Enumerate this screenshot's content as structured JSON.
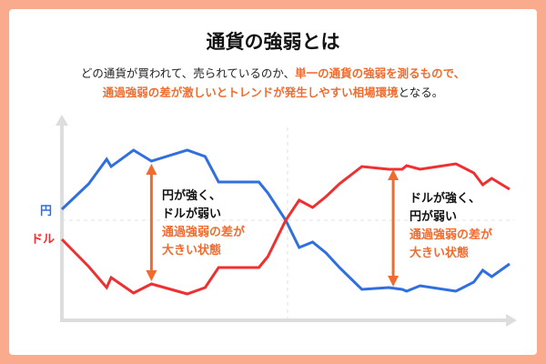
{
  "title": "通貨の強弱とは",
  "description": {
    "line1_plain": "どの通貨が買われて、売られているのか、",
    "line1_highlight": "単一の通貨の強弱を測るもので、",
    "line2_highlight": "通過強弱の差が激しいとトレンドが発生しやすい相場環境",
    "line2_plain": "となる。"
  },
  "colors": {
    "yen": "#2f6fe0",
    "usd": "#f03030",
    "accent": "#f26b2e",
    "frame": "#fbab8d",
    "axis": "#dddddd"
  },
  "labels": {
    "yen": "円",
    "usd": "ドル"
  },
  "annotations": [
    {
      "line1": "円が強く、",
      "line2": "ドルが弱い",
      "line3": "通過強弱の差が",
      "line4": "大きい状態"
    },
    {
      "line1": "ドルが強く、",
      "line2": "円が弱い",
      "line3": "通過強弱の差が",
      "line4": "大きい状態"
    }
  ],
  "chart_data": {
    "type": "line",
    "x": [
      0,
      6,
      10,
      11,
      16,
      20,
      28,
      32,
      35,
      44,
      46,
      50,
      53,
      56,
      59,
      62,
      67,
      73,
      76,
      77,
      80,
      88,
      92,
      94,
      96,
      100
    ],
    "series": [
      {
        "name": "円",
        "values": [
          12,
          40,
          67,
          59,
          77,
          65,
          77,
          70,
          42,
          42,
          30,
          0,
          -30,
          -24,
          -36,
          -52,
          -76,
          -74,
          -76,
          -78,
          -72,
          -78,
          -68,
          -55,
          -62,
          -48
        ]
      },
      {
        "name": "ドル",
        "values": [
          -21,
          -51,
          -74,
          -63,
          -80,
          -70,
          -81,
          -74,
          -52,
          -52,
          -40,
          0,
          22,
          14,
          26,
          40,
          59,
          56,
          56,
          60,
          56,
          62,
          52,
          39,
          46,
          34
        ]
      }
    ],
    "arrows": [
      {
        "x": 20,
        "from": 65,
        "to": -70
      },
      {
        "x": 74,
        "from": 59,
        "to": -76
      }
    ],
    "grid": false
  }
}
